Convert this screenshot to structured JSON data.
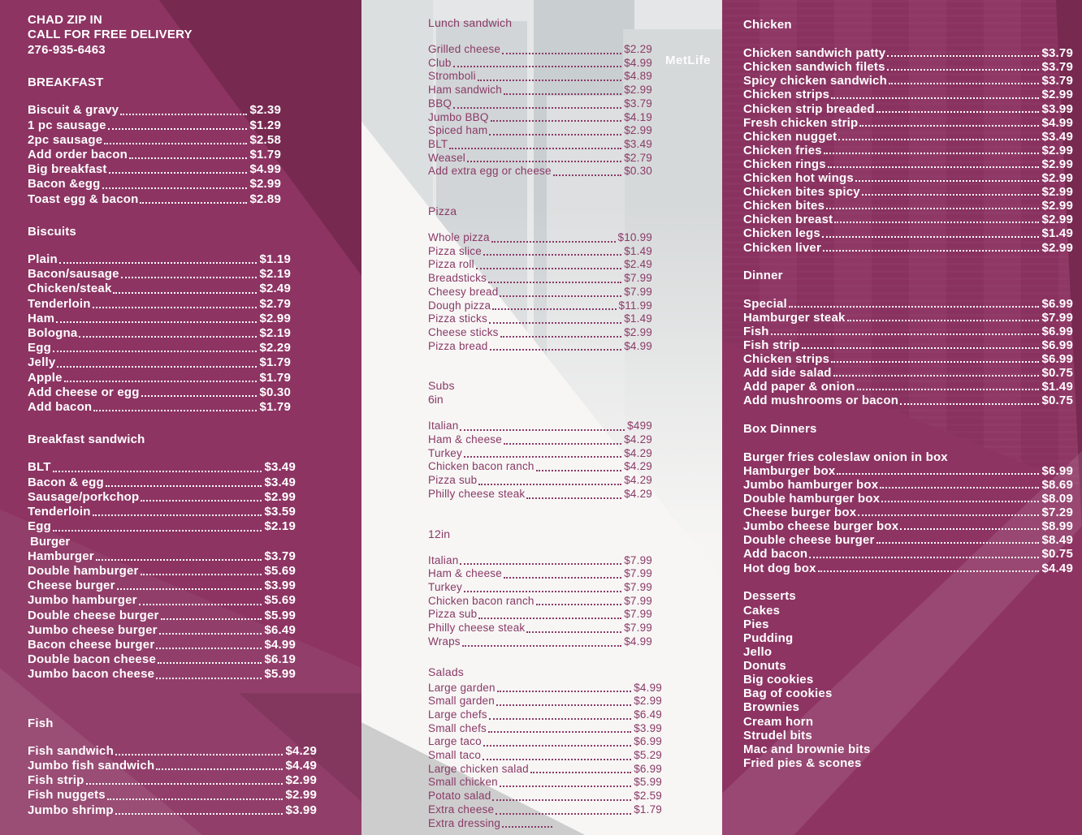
{
  "brand": {
    "line1": "CHAD ZIP IN",
    "line2": "CALL FOR FREE DELIVERY",
    "phone": "276-935-6463"
  },
  "background": {
    "watermark": "MetLife"
  },
  "colors": {
    "panel_maroon": "#8D3463",
    "panel_dark": "#772950",
    "accent_text": "#8A3A67",
    "white": "#FFFFFF"
  },
  "columns": {
    "left": {
      "sections": [
        {
          "title": "BREAKFAST",
          "items": [
            {
              "name": "Biscuit & gravy",
              "price": "$2.39"
            },
            {
              "name": "1 pc sausage",
              "price": "$1.29"
            },
            {
              "name": "2pc sausage",
              "price": "$2.58"
            },
            {
              "name": "Add order bacon",
              "price": "$1.79"
            },
            {
              "name": "Big breakfast",
              "price": "$4.99"
            },
            {
              "name": "Bacon &egg",
              "price": "$2.99"
            },
            {
              "name": "Toast egg & bacon",
              "price": "$2.89"
            }
          ]
        },
        {
          "title": "Biscuits",
          "items": [
            {
              "name": "Plain",
              "price": "$1.19"
            },
            {
              "name": "Bacon/sausage",
              "price": "$2.19"
            },
            {
              "name": "Chicken/steak",
              "price": "$2.49"
            },
            {
              "name": "Tenderloin",
              "price": "$2.79"
            },
            {
              "name": "Ham",
              "price": "$2.99"
            },
            {
              "name": "Bologna",
              "price": "$2.19"
            },
            {
              "name": "Egg",
              "price": "$2.29"
            },
            {
              "name": "Jelly",
              "price": "$1.79"
            },
            {
              "name": "Apple",
              "price": "$1.79"
            },
            {
              "name": "Add cheese or egg",
              "price": "$0.30"
            },
            {
              "name": "Add bacon",
              "price": "$1.79"
            }
          ]
        },
        {
          "title": "Breakfast sandwich",
          "items": [
            {
              "name": "BLT",
              "price": "$3.49"
            },
            {
              "name": "Bacon & egg",
              "price": "$3.49"
            },
            {
              "name": "Sausage/porkchop",
              "price": "$2.99"
            },
            {
              "name": "Tenderloin",
              "price": "$3.59"
            },
            {
              "name": "Egg",
              "price": "$2.19"
            },
            {
              "subheader": "Burger"
            },
            {
              "name": "Hamburger",
              "price": "$3.79"
            },
            {
              "name": "Double hamburger",
              "price": "$5.69"
            },
            {
              "name": "Cheese burger",
              "price": "$3.99"
            },
            {
              "name": "Jumbo hamburger",
              "price": "$5.69"
            },
            {
              "name": "Double cheese burger",
              "price": "$5.99"
            },
            {
              "name": "Jumbo cheese burger",
              "price": "$6.49"
            },
            {
              "name": "Bacon cheese burger",
              "price": "$4.99"
            },
            {
              "name": "Double bacon cheese",
              "price": "$6.19"
            },
            {
              "name": "Jumbo bacon cheese",
              "price": "$5.99"
            }
          ]
        },
        {
          "title": "Fish",
          "items": [
            {
              "name": "Fish sandwich",
              "price": "$4.29"
            },
            {
              "name": "Jumbo fish sandwich",
              "price": "$4.49"
            },
            {
              "name": "Fish strip",
              "price": "$2.99"
            },
            {
              "name": "Fish nuggets",
              "price": "$2.99"
            },
            {
              "name": "Jumbo shrimp",
              "price": "$3.99"
            }
          ]
        }
      ]
    },
    "middle": {
      "sections": [
        {
          "title": "Lunch sandwich",
          "items": [
            {
              "name": "Grilled cheese",
              "price": "$2.29"
            },
            {
              "name": "Club",
              "price": "$4.99"
            },
            {
              "name": "Stromboli",
              "price": "$4.89"
            },
            {
              "name": "Ham sandwich",
              "price": "$2.99"
            },
            {
              "name": "BBQ",
              "price": "$3.79"
            },
            {
              "name": "Jumbo BBQ",
              "price": "$4.19"
            },
            {
              "name": "Spiced ham",
              "price": "$2.99"
            },
            {
              "name": "BLT",
              "price": "$3.49"
            },
            {
              "name": "Weasel",
              "price": "$2.79"
            },
            {
              "name": "Add extra egg or cheese",
              "price": "$0.30"
            }
          ]
        },
        {
          "title": "Pizza",
          "items": [
            {
              "name": "Whole pizza",
              "price": "$10.99"
            },
            {
              "name": "Pizza slice",
              "price": "$1.49"
            },
            {
              "name": "Pizza roll",
              "price": "$2.49"
            },
            {
              "name": "Breadsticks",
              "price": "$7.99"
            },
            {
              "name": "Cheesy bread",
              "price": "$7.99"
            },
            {
              "name": "Dough pizza",
              "price": "$11.99"
            },
            {
              "name": "Pizza sticks",
              "price": "$1.49"
            },
            {
              "name": "Cheese sticks",
              "price": "$2.99"
            },
            {
              "name": "Pizza bread",
              "price": "$4.99"
            }
          ]
        },
        {
          "title": "Subs",
          "subtitle": "6in",
          "items": [
            {
              "name": "Italian",
              "price": "$499"
            },
            {
              "name": "Ham & cheese",
              "price": "$4.29"
            },
            {
              "name": "Turkey",
              "price": "$4.29"
            },
            {
              "name": "Chicken bacon ranch",
              "price": "$4.29"
            },
            {
              "name": "Pizza sub",
              "price": "$4.29"
            },
            {
              "name": "Philly cheese steak",
              "price": "$4.29"
            }
          ]
        },
        {
          "title": "12in",
          "items": [
            {
              "name": "Italian",
              "price": "$7.99"
            },
            {
              "name": "Ham & cheese",
              "price": "$7.99"
            },
            {
              "name": "Turkey",
              "price": "$7.99"
            },
            {
              "name": "Chicken bacon ranch",
              "price": "$7.99"
            },
            {
              "name": "Pizza sub",
              "price": "$7.99"
            },
            {
              "name": "Philly cheese steak",
              "price": "$7.99"
            },
            {
              "name": "Wraps",
              "price": "$4.99"
            }
          ]
        },
        {
          "title": "Salads",
          "items": [
            {
              "name": "Large garden",
              "price": "$4.99"
            },
            {
              "name": "Small garden",
              "price": "$2.99"
            },
            {
              "name": "Large chefs",
              "price": "$6.49"
            },
            {
              "name": "Small chefs",
              "price": "$3.99"
            },
            {
              "name": "Large taco",
              "price": "$6.99"
            },
            {
              "name": "Small taco",
              "price": "$5.29"
            },
            {
              "name": "Large chicken salad",
              "price": "$6.99"
            },
            {
              "name": "Small chicken",
              "price": "$5.99"
            },
            {
              "name": "Potato salad",
              "price": "$2.59"
            },
            {
              "name": "Extra cheese",
              "price": "$1.79"
            },
            {
              "name": "Extra dressing",
              "price": ""
            }
          ]
        }
      ]
    },
    "right": {
      "sections": [
        {
          "title": "Chicken",
          "items": [
            {
              "name": "Chicken sandwich patty",
              "price": "$3.79"
            },
            {
              "name": "Chicken sandwich filets",
              "price": "$3.79"
            },
            {
              "name": "Spicy chicken sandwich",
              "price": "$3.79"
            },
            {
              "name": "Chicken strips",
              "price": "$2.99"
            },
            {
              "name": "Chicken strip breaded",
              "price": "$3.99"
            },
            {
              "name": "Fresh chicken strip",
              "price": "$4.99"
            },
            {
              "name": "Chicken nugget",
              "price": "$3.49"
            },
            {
              "name": "Chicken fries",
              "price": "$2.99"
            },
            {
              "name": "Chicken rings",
              "price": "$2.99"
            },
            {
              "name": "Chicken hot wings",
              "price": "$2.99"
            },
            {
              "name": "Chicken bites spicy",
              "price": "$2.99"
            },
            {
              "name": "Chicken bites",
              "price": "$2.99"
            },
            {
              "name": "Chicken breast",
              "price": "$2.99"
            },
            {
              "name": "Chicken legs",
              "price": "$1.49"
            },
            {
              "name": "Chicken liver",
              "price": "$2.99"
            }
          ]
        },
        {
          "title": "Dinner",
          "items": [
            {
              "name": "Special",
              "price": "$6.99"
            },
            {
              "name": "Hamburger steak",
              "price": "$7.99"
            },
            {
              "name": "Fish",
              "price": "$6.99"
            },
            {
              "name": "Fish strip",
              "price": "$6.99"
            },
            {
              "name": "Chicken strips",
              "price": "$6.99"
            },
            {
              "name": "Add side salad",
              "price": "$0.75"
            },
            {
              "name": "Add paper & onion",
              "price": "$1.49"
            },
            {
              "name": "Add mushrooms or bacon",
              "price": "$0.75"
            }
          ]
        },
        {
          "title": "Box Dinners",
          "items": [
            {
              "name": "Burger fries coleslaw onion in box"
            },
            {
              "name": "Hamburger box",
              "price": "$6.99"
            },
            {
              "name": "Jumbo hamburger box",
              "price": "$8.69"
            },
            {
              "name": "Double hamburger box",
              "price": "$8.09"
            },
            {
              "name": "Cheese burger box",
              "price": "$7.29"
            },
            {
              "name": "Jumbo cheese burger box",
              "price": "$8.99"
            },
            {
              "name": "Double cheese burger",
              "price": "$8.49"
            },
            {
              "name": "Add bacon",
              "price": "$0.75"
            },
            {
              "name": "Hot dog box",
              "price": "$4.49"
            }
          ]
        },
        {
          "title": "Desserts",
          "items": [
            {
              "name": "Cakes"
            },
            {
              "name": "Pies"
            },
            {
              "name": "Pudding"
            },
            {
              "name": "Jello"
            },
            {
              "name": "Donuts"
            },
            {
              "name": "Big cookies"
            },
            {
              "name": "Bag of cookies"
            },
            {
              "name": "Brownies"
            },
            {
              "name": "Cream horn"
            },
            {
              "name": "Strudel bits"
            },
            {
              "name": "Mac and brownie bits"
            },
            {
              "name": "Fried pies & scones"
            }
          ]
        }
      ]
    }
  }
}
